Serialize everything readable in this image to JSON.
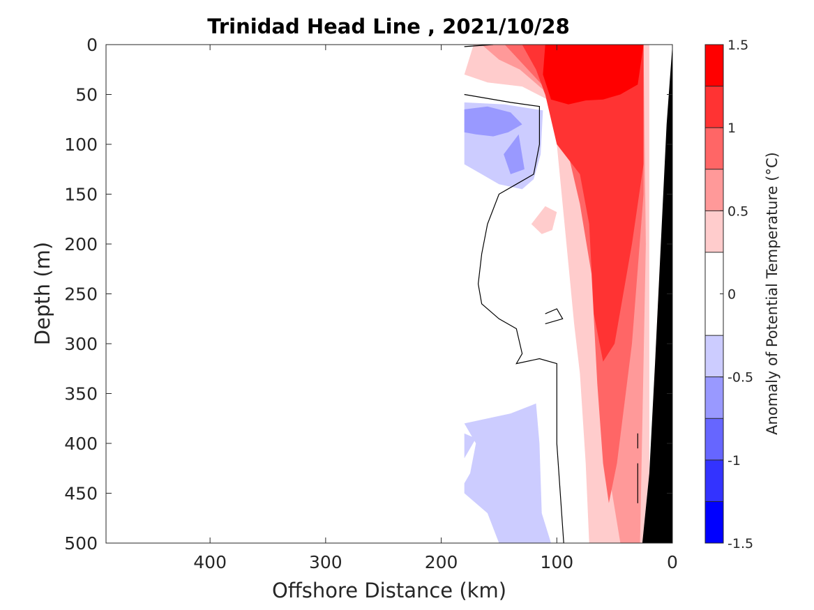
{
  "chart_data": {
    "type": "heatmap",
    "title": "Trinidad Head Line , 2021/10/28",
    "xlabel": "Offshore Distance (km)",
    "ylabel": "Depth (m)",
    "xlim": [
      490,
      0
    ],
    "ylim": [
      0,
      500
    ],
    "x_reversed": true,
    "y_reversed": true,
    "xticks": [
      400,
      300,
      200,
      100,
      0
    ],
    "yticks": [
      0,
      50,
      100,
      150,
      200,
      250,
      300,
      350,
      400,
      450,
      500
    ],
    "colorbar": {
      "label": "Anomaly of Potential Temperature (°C)",
      "range": [
        -1.5,
        1.5
      ],
      "ticks": [
        "1.5",
        "1",
        "0.5",
        "0",
        "-0.5",
        "-1",
        "-1.5"
      ],
      "levels": [
        {
          "min": 1.25,
          "max": 1.5,
          "color": "#ff0000"
        },
        {
          "min": 1.0,
          "max": 1.25,
          "color": "#ff3333"
        },
        {
          "min": 0.75,
          "max": 1.0,
          "color": "#ff6666"
        },
        {
          "min": 0.5,
          "max": 0.75,
          "color": "#ff9999"
        },
        {
          "min": 0.25,
          "max": 0.5,
          "color": "#ffcccc"
        },
        {
          "min": -0.25,
          "max": 0.25,
          "color": "#ffffff"
        },
        {
          "min": -0.5,
          "max": -0.25,
          "color": "#ccccff"
        },
        {
          "min": -0.75,
          "max": -0.5,
          "color": "#9999ff"
        },
        {
          "min": -1.0,
          "max": -0.75,
          "color": "#6666ff"
        },
        {
          "min": -1.25,
          "max": -1.0,
          "color": "#3333ff"
        },
        {
          "min": -1.5,
          "max": -1.25,
          "color": "#0000ff"
        }
      ]
    },
    "data_extent_km": [
      180,
      0
    ],
    "regions": [
      {
        "name": "warm-anomaly-0.25",
        "level": 0.25,
        "color": "#ffcccc",
        "points": [
          [
            180,
            30
          ],
          [
            172,
            0
          ],
          [
            5,
            0
          ],
          [
            18,
            500
          ],
          [
            72,
            500
          ],
          [
            75,
            420
          ],
          [
            80,
            330
          ],
          [
            85,
            280
          ],
          [
            90,
            220
          ],
          [
            95,
            160
          ],
          [
            100,
            100
          ],
          [
            108,
            55
          ],
          [
            130,
            42
          ],
          [
            160,
            38
          ]
        ]
      },
      {
        "name": "warm-anomaly-0.5",
        "level": 0.5,
        "color": "#ff9999",
        "points": [
          [
            165,
            0
          ],
          [
            25,
            0
          ],
          [
            23,
            200
          ],
          [
            28,
            500
          ],
          [
            45,
            500
          ],
          [
            55,
            430
          ],
          [
            62,
            360
          ],
          [
            67,
            260
          ],
          [
            73,
            160
          ],
          [
            92,
            100
          ],
          [
            112,
            45
          ],
          [
            132,
            25
          ],
          [
            150,
            15
          ]
        ]
      },
      {
        "name": "warm-anomaly-0.75",
        "level": 0.75,
        "color": "#ff6666",
        "points": [
          [
            145,
            0
          ],
          [
            25,
            0
          ],
          [
            25,
            150
          ],
          [
            35,
            300
          ],
          [
            48,
            420
          ],
          [
            55,
            460
          ],
          [
            60,
            420
          ],
          [
            65,
            340
          ],
          [
            70,
            230
          ],
          [
            80,
            160
          ],
          [
            92,
            100
          ],
          [
            105,
            50
          ],
          [
            125,
            25
          ]
        ]
      },
      {
        "name": "warm-anomaly-1.0",
        "level": 1.0,
        "color": "#ff3333",
        "points": [
          [
            130,
            0
          ],
          [
            25,
            0
          ],
          [
            25,
            120
          ],
          [
            35,
            200
          ],
          [
            50,
            300
          ],
          [
            60,
            318
          ],
          [
            68,
            270
          ],
          [
            72,
            180
          ],
          [
            80,
            130
          ],
          [
            100,
            100
          ],
          [
            110,
            50
          ],
          [
            118,
            25
          ]
        ]
      },
      {
        "name": "warm-anomaly-1.25",
        "level": 1.25,
        "color": "#ff0000",
        "points": [
          [
            110,
            0
          ],
          [
            25,
            0
          ],
          [
            30,
            40
          ],
          [
            45,
            50
          ],
          [
            60,
            55
          ],
          [
            75,
            56
          ],
          [
            90,
            60
          ],
          [
            105,
            55
          ],
          [
            112,
            30
          ]
        ]
      },
      {
        "name": "warm-patch-isolated",
        "level": 0.25,
        "color": "#ffcccc",
        "points": [
          [
            122,
            180
          ],
          [
            110,
            162
          ],
          [
            100,
            168
          ],
          [
            104,
            186
          ],
          [
            113,
            190
          ]
        ]
      },
      {
        "name": "cold-anomaly-upper",
        "level": -0.25,
        "color": "#ccccff",
        "points": [
          [
            180,
            58
          ],
          [
            145,
            60
          ],
          [
            112,
            66
          ],
          [
            114,
            110
          ],
          [
            120,
            135
          ],
          [
            130,
            145
          ],
          [
            150,
            140
          ],
          [
            165,
            130
          ],
          [
            180,
            120
          ]
        ]
      },
      {
        "name": "cold-anomaly-upper-strong",
        "level": -0.5,
        "color": "#9999ff",
        "points": [
          [
            180,
            65
          ],
          [
            160,
            62
          ],
          [
            140,
            68
          ],
          [
            130,
            80
          ],
          [
            142,
            88
          ],
          [
            155,
            92
          ],
          [
            170,
            90
          ],
          [
            180,
            88
          ]
        ]
      },
      {
        "name": "cold-anomaly-upper-lobe",
        "level": -0.5,
        "color": "#9999ff",
        "points": [
          [
            133,
            90
          ],
          [
            128,
            125
          ],
          [
            140,
            130
          ],
          [
            146,
            110
          ]
        ]
      },
      {
        "name": "cold-anomaly-lower",
        "level": -0.25,
        "color": "#ccccff",
        "points": [
          [
            180,
            380
          ],
          [
            170,
            400
          ],
          [
            175,
            430
          ],
          [
            180,
            440
          ],
          [
            180,
            450
          ],
          [
            160,
            470
          ],
          [
            150,
            500
          ],
          [
            105,
            500
          ],
          [
            113,
            470
          ],
          [
            115,
            400
          ],
          [
            118,
            360
          ],
          [
            140,
            370
          ]
        ]
      },
      {
        "name": "cold-anomaly-lower-edge",
        "level": -0.25,
        "color": "#ccccff",
        "points": [
          [
            180,
            390
          ],
          [
            170,
            395
          ],
          [
            180,
            415
          ]
        ]
      }
    ],
    "zero_contours": [
      {
        "name": "zero-contour-main",
        "points": [
          [
            180,
            50
          ],
          [
            140,
            58
          ],
          [
            115,
            62
          ],
          [
            115,
            100
          ],
          [
            120,
            130
          ],
          [
            135,
            140
          ],
          [
            150,
            150
          ],
          [
            160,
            180
          ],
          [
            165,
            210
          ],
          [
            168,
            240
          ],
          [
            165,
            260
          ],
          [
            150,
            275
          ],
          [
            135,
            285
          ],
          [
            130,
            310
          ],
          [
            135,
            320
          ],
          [
            115,
            315
          ],
          [
            100,
            320
          ],
          [
            100,
            400
          ],
          [
            94,
            500
          ]
        ]
      },
      {
        "name": "zero-contour-surface",
        "points": [
          [
            180,
            2
          ],
          [
            155,
            0
          ]
        ]
      },
      {
        "name": "zero-contour-loop",
        "points": [
          [
            110,
            270
          ],
          [
            100,
            265
          ],
          [
            95,
            275
          ],
          [
            110,
            280
          ]
        ]
      },
      {
        "name": "zero-contour-nearshore-1",
        "points": [
          [
            30,
            390
          ],
          [
            30,
            405
          ]
        ]
      },
      {
        "name": "zero-contour-nearshore-2",
        "points": [
          [
            30,
            420
          ],
          [
            30,
            460
          ]
        ]
      }
    ],
    "shelf": {
      "color": "#000000",
      "points": [
        [
          0,
          0
        ],
        [
          5,
          80
        ],
        [
          10,
          200
        ],
        [
          15,
          320
        ],
        [
          20,
          430
        ],
        [
          26,
          500
        ],
        [
          0,
          500
        ]
      ]
    },
    "nodata_nearshore": {
      "color": "#ffffff",
      "points": [
        [
          20,
          0
        ],
        [
          0,
          0
        ],
        [
          5,
          80
        ],
        [
          10,
          200
        ],
        [
          15,
          320
        ],
        [
          20,
          430
        ],
        [
          26,
          500
        ],
        [
          20,
          500
        ]
      ]
    }
  }
}
